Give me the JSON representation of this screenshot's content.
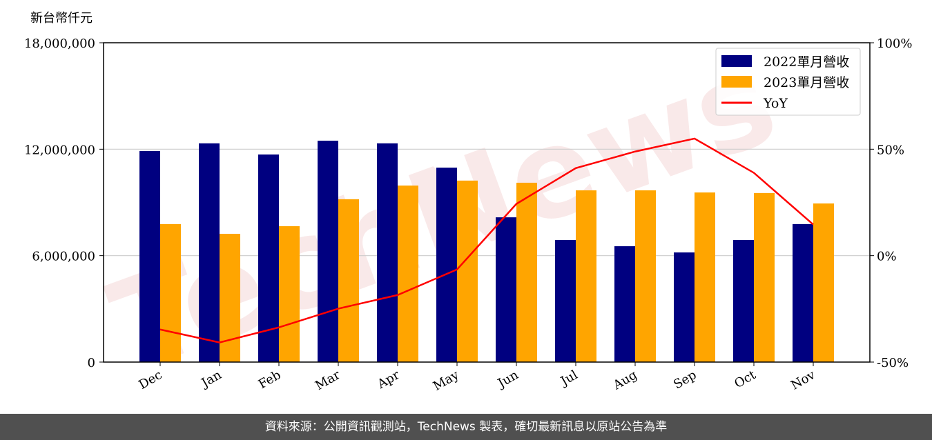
{
  "chart_data": {
    "type": "bar+line",
    "ylabel": "新台幣仟元",
    "categories": [
      "Dec",
      "Jan",
      "Feb",
      "Mar",
      "Apr",
      "May",
      "Jun",
      "Jul",
      "Aug",
      "Sep",
      "Oct",
      "Nov"
    ],
    "ylim": [
      0,
      18000000
    ],
    "yticks": [
      "0",
      "6,000,000",
      "12,000,000",
      "18,000,000"
    ],
    "ytick_values": [
      0,
      6000000,
      12000000,
      18000000
    ],
    "y2lim": [
      -50,
      100
    ],
    "y2ticks": [
      "-50%",
      "0%",
      "50%",
      "100%"
    ],
    "y2tick_values": [
      -50,
      0,
      50,
      100
    ],
    "grid": "horizontal",
    "legend": "top-right",
    "series": [
      {
        "name": "2022單月營收",
        "type": "bar",
        "color": "#000080",
        "values": [
          11900000,
          12330000,
          11700000,
          12480000,
          12330000,
          10960000,
          8160000,
          6880000,
          6530000,
          6180000,
          6880000,
          7780000
        ]
      },
      {
        "name": "2023單月營收",
        "type": "bar",
        "color": "#FFA500",
        "values": [
          7780000,
          7230000,
          7660000,
          9180000,
          9950000,
          10230000,
          10110000,
          9680000,
          9680000,
          9560000,
          9530000,
          8940000
        ]
      },
      {
        "name": "YoY",
        "type": "line",
        "axis": "right",
        "color": "#FF0000",
        "values": [
          -34.7,
          -40.8,
          -33.7,
          -24.9,
          -18.5,
          -6.5,
          24.3,
          41.1,
          48.9,
          55.0,
          38.9,
          14.6
        ]
      }
    ]
  },
  "watermark": "TechNews",
  "footer": "資料來源：公開資訊觀測站，TechNews 製表，確切最新訊息以原站公告為準"
}
